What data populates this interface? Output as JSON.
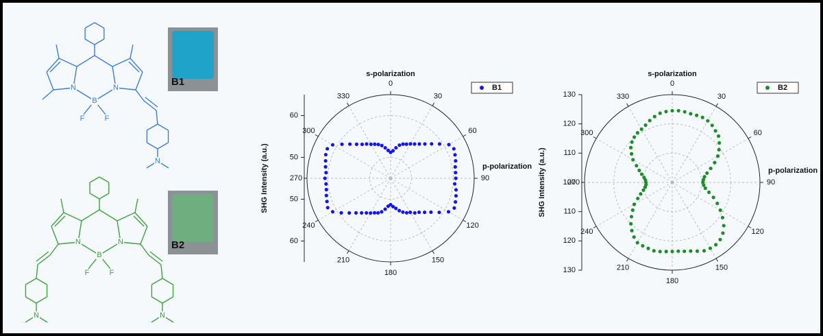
{
  "molecules": [
    {
      "atoms": [
        "N",
        "N",
        "B",
        "F",
        "F",
        "N"
      ],
      "photo_label": "B1"
    },
    {
      "atoms": [
        "N",
        "N",
        "B",
        "F",
        "F",
        "N",
        "N"
      ],
      "photo_label": "B2"
    }
  ],
  "chart_data": [
    {
      "type": "polar-scatter",
      "top_label": "s-polarization",
      "right_label": "p-polarization",
      "ylabel": "SHG Intensity (a.u.)",
      "x": [
        0,
        5,
        10,
        15,
        20,
        25,
        30,
        35,
        40,
        45,
        50,
        55,
        60,
        65,
        70,
        75,
        80,
        85,
        90,
        95,
        100,
        105,
        110,
        115,
        120,
        125,
        130,
        135,
        140,
        145,
        150,
        155,
        160,
        165,
        170,
        175,
        180,
        185,
        190,
        195,
        200,
        205,
        210,
        215,
        220,
        225,
        230,
        235,
        240,
        245,
        250,
        255,
        260,
        265,
        270,
        275,
        280,
        285,
        290,
        295,
        300,
        305,
        310,
        315,
        320,
        325,
        330,
        335,
        340,
        345,
        350,
        355
      ],
      "series": [
        {
          "name": "B1",
          "color": "#1414f0",
          "values": [
            51.2,
            51.6,
            52.4,
            53.2,
            53.7,
            54.0,
            54.5,
            55.0,
            55.7,
            56.6,
            57.8,
            59.3,
            61.1,
            61.7,
            61.4,
            61.1,
            60.7,
            60.6,
            60.6,
            60.4,
            60.9,
            61.2,
            61.5,
            61.8,
            61.0,
            59.2,
            57.6,
            56.5,
            55.6,
            55.1,
            54.4,
            54.1,
            53.6,
            53.0,
            52.3,
            51.8,
            51.3,
            51.7,
            52.5,
            53.3,
            53.8,
            54.1,
            54.6,
            55.1,
            55.8,
            56.7,
            57.9,
            59.4,
            61.0,
            61.6,
            61.2,
            60.9,
            60.6,
            60.5,
            60.7,
            60.5,
            60.8,
            61.1,
            61.5,
            61.7,
            61.0,
            59.2,
            57.7,
            56.5,
            55.6,
            55.0,
            54.4,
            54.0,
            53.6,
            53.1,
            52.4,
            51.7
          ]
        }
      ],
      "ylim": [
        45,
        65
      ],
      "yticks": [
        50,
        60
      ],
      "xticks": [
        0,
        30,
        60,
        90,
        120,
        150,
        180,
        210,
        240,
        270,
        300,
        330
      ],
      "grid": true,
      "legend": "upper right"
    },
    {
      "type": "polar-scatter",
      "top_label": "s-polarization",
      "right_label": "p-polarization",
      "ylabel": "SHG Intensity (a.u.)",
      "x": [
        0,
        5,
        10,
        15,
        20,
        25,
        30,
        35,
        40,
        45,
        50,
        55,
        60,
        65,
        70,
        75,
        80,
        85,
        90,
        95,
        100,
        105,
        110,
        115,
        120,
        125,
        130,
        135,
        140,
        145,
        150,
        155,
        160,
        165,
        170,
        175,
        180,
        185,
        190,
        195,
        200,
        205,
        210,
        215,
        220,
        225,
        230,
        235,
        240,
        245,
        250,
        255,
        260,
        265,
        270,
        275,
        280,
        285,
        290,
        295,
        300,
        305,
        310,
        315,
        320,
        325,
        330,
        335,
        340,
        345,
        350,
        355
      ],
      "series": [
        {
          "name": "B2",
          "color": "#1e8c2a",
          "values": [
            124.5,
            124.6,
            124.5,
            124.3,
            124.4,
            124.5,
            124.3,
            123.8,
            123.0,
            122.4,
            121.0,
            119.5,
            118.0,
            116.0,
            114.0,
            112.3,
            111.2,
            110.7,
            110.5,
            110.8,
            111.5,
            113.0,
            115.0,
            117.0,
            119.0,
            121.0,
            123.0,
            124.5,
            125.5,
            126.0,
            126.0,
            125.8,
            125.0,
            124.3,
            123.9,
            123.6,
            123.6,
            123.7,
            124.0,
            124.2,
            124.0,
            123.9,
            123.8,
            122.8,
            121.5,
            120.0,
            118.2,
            116.5,
            115.0,
            113.0,
            111.5,
            110.2,
            109.4,
            109.0,
            109.0,
            109.2,
            109.8,
            110.8,
            112.0,
            113.5,
            115.5,
            117.0,
            118.5,
            119.5,
            120.2,
            120.7,
            121.0,
            121.6,
            122.5,
            123.3,
            124.0,
            124.3
          ]
        }
      ],
      "ylim": [
        100,
        130
      ],
      "yticks": [
        100,
        110,
        120,
        130
      ],
      "xticks": [
        0,
        30,
        60,
        90,
        120,
        150,
        180,
        210,
        240,
        270,
        300,
        330
      ],
      "grid": true,
      "legend": "upper right"
    }
  ]
}
